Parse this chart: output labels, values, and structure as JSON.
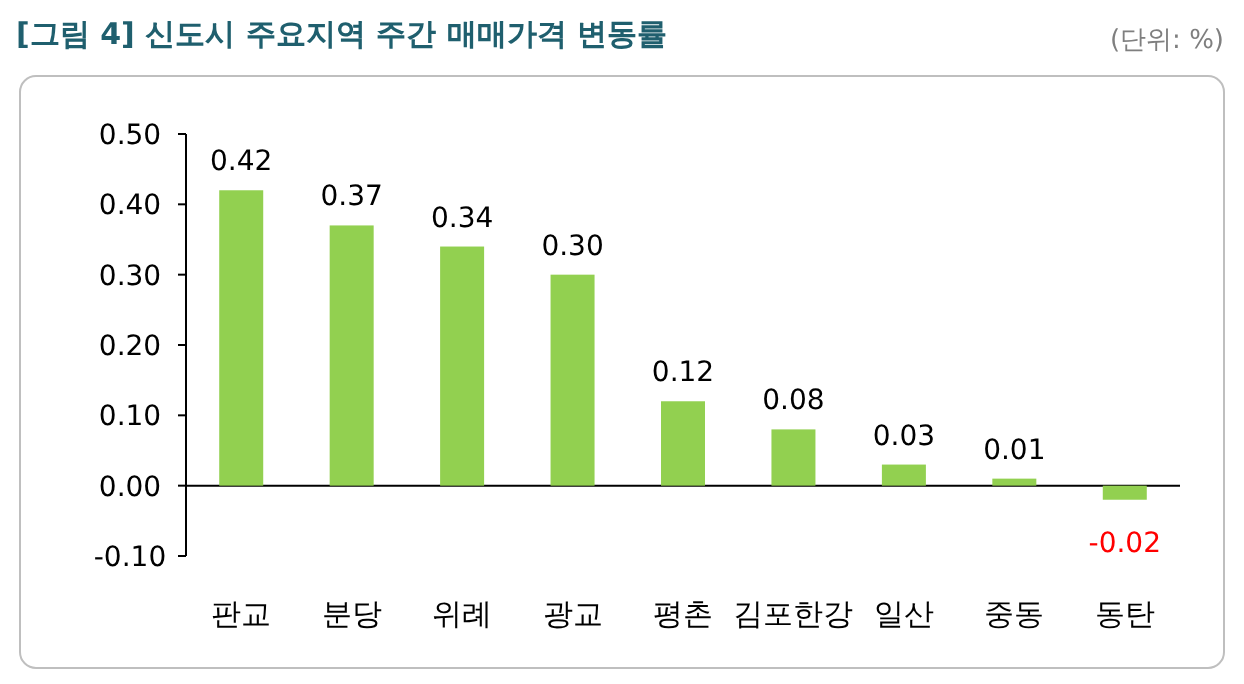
{
  "chart_data": {
    "type": "bar",
    "title": "[그림 4] 신도시  주요지역 주간 매매가격 변동률",
    "annotations": [
      "(단위: %)"
    ],
    "categories": [
      "판교",
      "분당",
      "위례",
      "광교",
      "평촌",
      "김포한강",
      "일산",
      "중동",
      "동탄"
    ],
    "values": [
      0.42,
      0.37,
      0.34,
      0.3,
      0.12,
      0.08,
      0.03,
      0.01,
      -0.02
    ],
    "color": "#92d050",
    "ylim": [
      -0.1,
      0.5
    ],
    "yticks": [
      {
        "value": -0.1,
        "label": "-0.10"
      },
      {
        "value": 0,
        "label": "0.00"
      },
      {
        "value": 0.1,
        "label": "0.10"
      },
      {
        "value": 0.2,
        "label": "0.20"
      },
      {
        "value": 0.3,
        "label": "0.30"
      },
      {
        "value": 0.4,
        "label": "0.40"
      },
      {
        "value": 0.5,
        "label": "0.50"
      }
    ],
    "value_labels": [
      "0.42",
      "0.37",
      "0.34",
      "0.30",
      "0.12",
      "0.08",
      "0.03",
      "0.01",
      "-0.02"
    ]
  }
}
